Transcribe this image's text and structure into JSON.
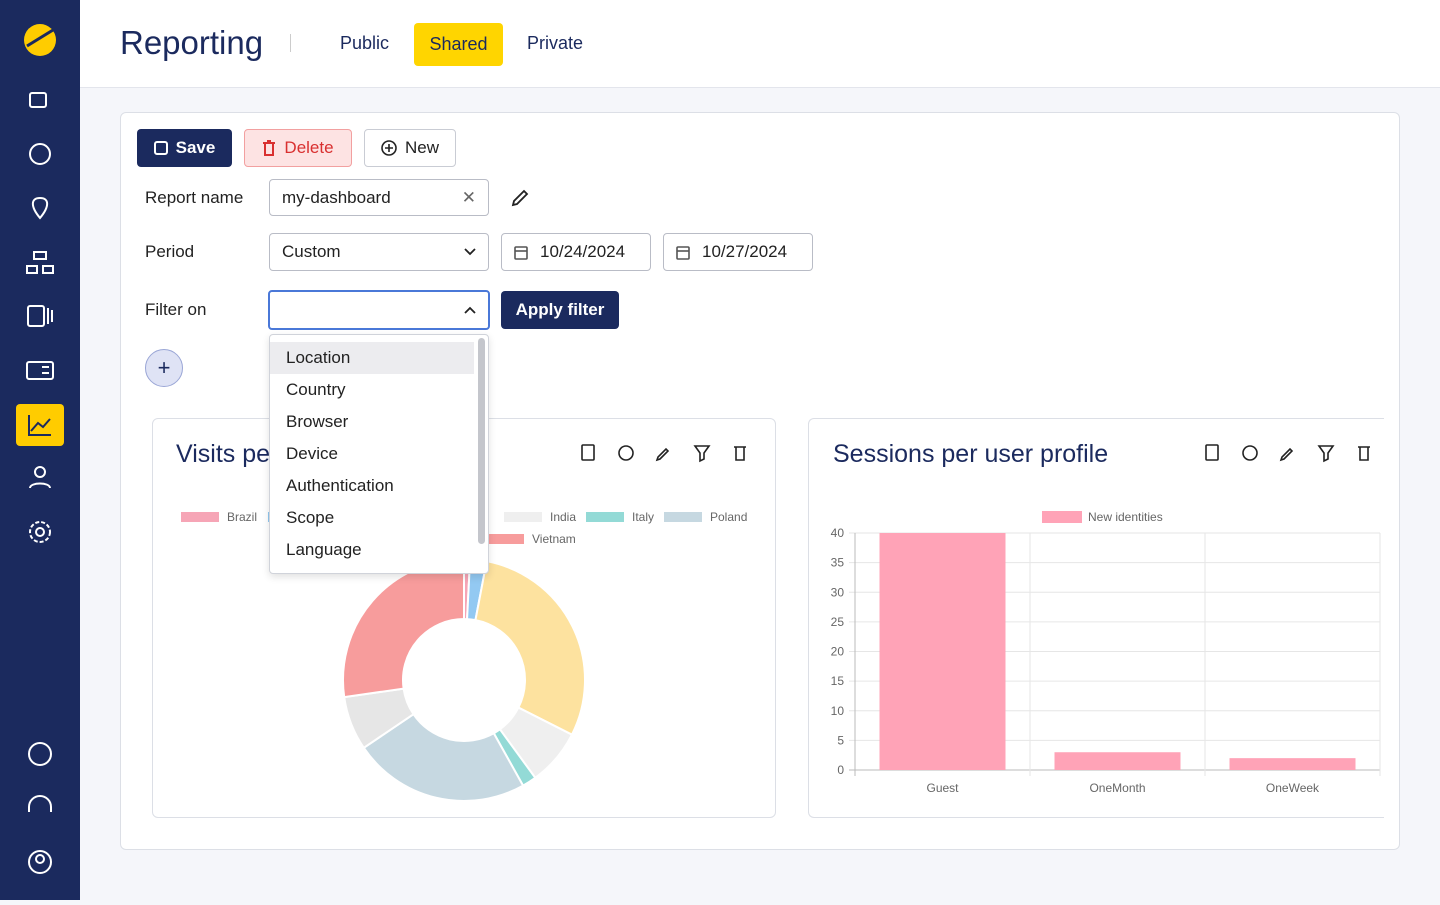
{
  "header": {
    "title": "Reporting",
    "tabs": [
      "Public",
      "Shared",
      "Private"
    ]
  },
  "toolbar": {
    "save": "Save",
    "delete": "Delete",
    "new": "New"
  },
  "form": {
    "report_name_label": "Report name",
    "report_name": "my-dashboard",
    "period_label": "Period",
    "period": "Custom",
    "start_date": "10/24/2024",
    "end_date": "10/27/2024",
    "filter_label": "Filter on",
    "apply": "Apply filter",
    "options": [
      "Location",
      "Country",
      "Browser",
      "Device",
      "Authentication",
      "Scope",
      "Language"
    ]
  },
  "chart_data": [
    {
      "type": "pie",
      "donut": true,
      "title": "Visits pe",
      "categories": [
        "Brazil",
        null,
        null,
        "India",
        "Italy",
        "Poland",
        null,
        "Vietnam"
      ],
      "values": [
        0.8,
        2.2,
        29.4,
        7.5,
        1.9,
        23.6,
        7.2,
        27.2
      ],
      "colors": [
        "#f6a5b6",
        "#93c9f2",
        "#fde29f",
        "#efefef",
        "#93dad6",
        "#c6d8e1",
        "#e6e6e6",
        "#f79c9c"
      ]
    },
    {
      "type": "bar",
      "title": "Sessions per user profile",
      "categories": [
        "Guest",
        "OneMonth",
        "OneWeek"
      ],
      "series": [
        {
          "name": "New identities",
          "color": "#ffa3b7",
          "values": [
            40,
            3,
            2
          ]
        }
      ],
      "ylim": [
        0,
        40
      ],
      "yticks": [
        0,
        5,
        10,
        15,
        20,
        25,
        30,
        35,
        40
      ],
      "grid": true
    }
  ]
}
